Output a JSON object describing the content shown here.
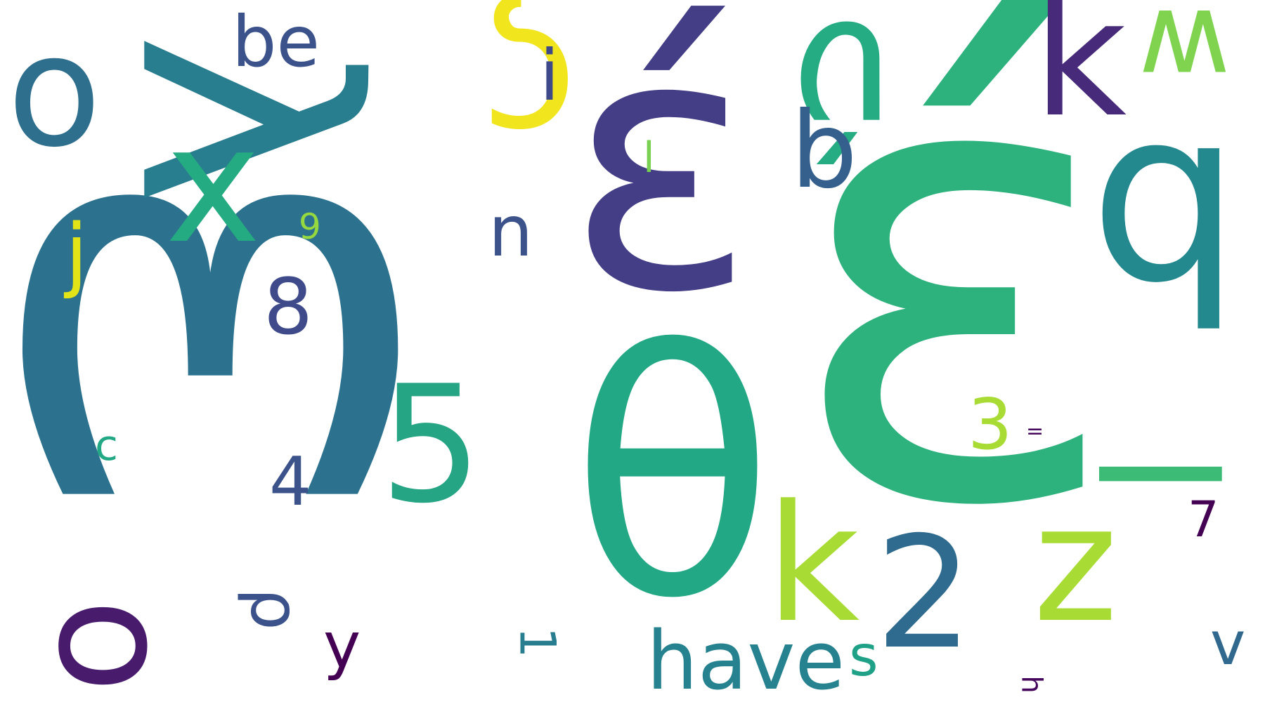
{
  "cloud": {
    "words": [
      {
        "text": "ω",
        "color": "#2c728e"
      },
      {
        "text": "έ",
        "color": "#2db27d"
      },
      {
        "text": "θ",
        "color": "#22a884"
      },
      {
        "text": "έ",
        "color": "#433e85"
      },
      {
        "text": "λ",
        "color": "#287d8e"
      },
      {
        "text": "ς",
        "color": "#f1e51d"
      },
      {
        "text": "q",
        "color": "#23898e"
      },
      {
        "text": "ύ",
        "color": "#25ac82"
      },
      {
        "text": "k",
        "color": "#472a7a"
      },
      {
        "text": "w",
        "color": "#7fd34e"
      },
      {
        "text": "o",
        "color": "#2e6f8e"
      },
      {
        "text": "x",
        "color": "#25ab82"
      },
      {
        "text": "5",
        "color": "#25a584"
      },
      {
        "text": "k",
        "color": "#a8db34"
      },
      {
        "text": "2",
        "color": "#2f6b8e"
      },
      {
        "text": "z",
        "color": "#a8db34"
      },
      {
        "text": "l",
        "color": "#3bbb75"
      },
      {
        "text": "o",
        "color": "#481b6d"
      },
      {
        "text": "b",
        "color": "#355f8d"
      },
      {
        "text": "be",
        "color": "#3b528b"
      },
      {
        "text": "i",
        "color": "#3e4989"
      },
      {
        "text": "n",
        "color": "#3b528b"
      },
      {
        "text": "8",
        "color": "#3e4a89"
      },
      {
        "text": "j",
        "color": "#e2e418"
      },
      {
        "text": "9",
        "color": "#95d840"
      },
      {
        "text": "l",
        "color": "#7ad151"
      },
      {
        "text": "c",
        "color": "#22a884"
      },
      {
        "text": "4",
        "color": "#3b528b"
      },
      {
        "text": "3",
        "color": "#a8db34"
      },
      {
        "text": "=",
        "color": "#46085c"
      },
      {
        "text": "7",
        "color": "#440154"
      },
      {
        "text": "have",
        "color": "#26828e"
      },
      {
        "text": "s",
        "color": "#1fa187"
      },
      {
        "text": "y",
        "color": "#440154"
      },
      {
        "text": "v",
        "color": "#31688e"
      },
      {
        "text": "ρ",
        "color": "#3b528b"
      },
      {
        "text": "1",
        "color": "#287d8e"
      },
      {
        "text": "h",
        "color": "#46085c"
      }
    ]
  }
}
